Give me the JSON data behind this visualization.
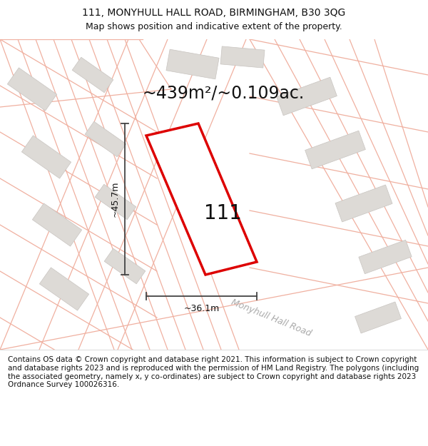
{
  "title_line1": "111, MONYHULL HALL ROAD, BIRMINGHAM, B30 3QG",
  "title_line2": "Map shows position and indicative extent of the property.",
  "area_text": "~439m²/~0.109ac.",
  "label_111": "111",
  "dim_width": "~36.1m",
  "dim_height": "~45.7m",
  "road_label": "Monyhull Hall Road",
  "footer_text": "Contains OS data © Crown copyright and database right 2021. This information is subject to Crown copyright and database rights 2023 and is reproduced with the permission of HM Land Registry. The polygons (including the associated geometry, namely x, y co-ordinates) are subject to Crown copyright and database rights 2023 Ordnance Survey 100026316.",
  "map_bg": "#f7f4f1",
  "plot_fill": "#ffffff",
  "plot_edge": "#dd0000",
  "building_fill": "#dddad6",
  "building_edge": "#c8c4c0",
  "road_line_color": "#f0b0a0",
  "dim_line_color": "#444444",
  "road_boundary_color": "#d8d4d0",
  "road_text_color": "#aaaaaa",
  "title_fontsize": 10,
  "subtitle_fontsize": 9,
  "area_fontsize": 17,
  "label_fontsize": 20,
  "dim_fontsize": 9,
  "footer_fontsize": 7.5
}
